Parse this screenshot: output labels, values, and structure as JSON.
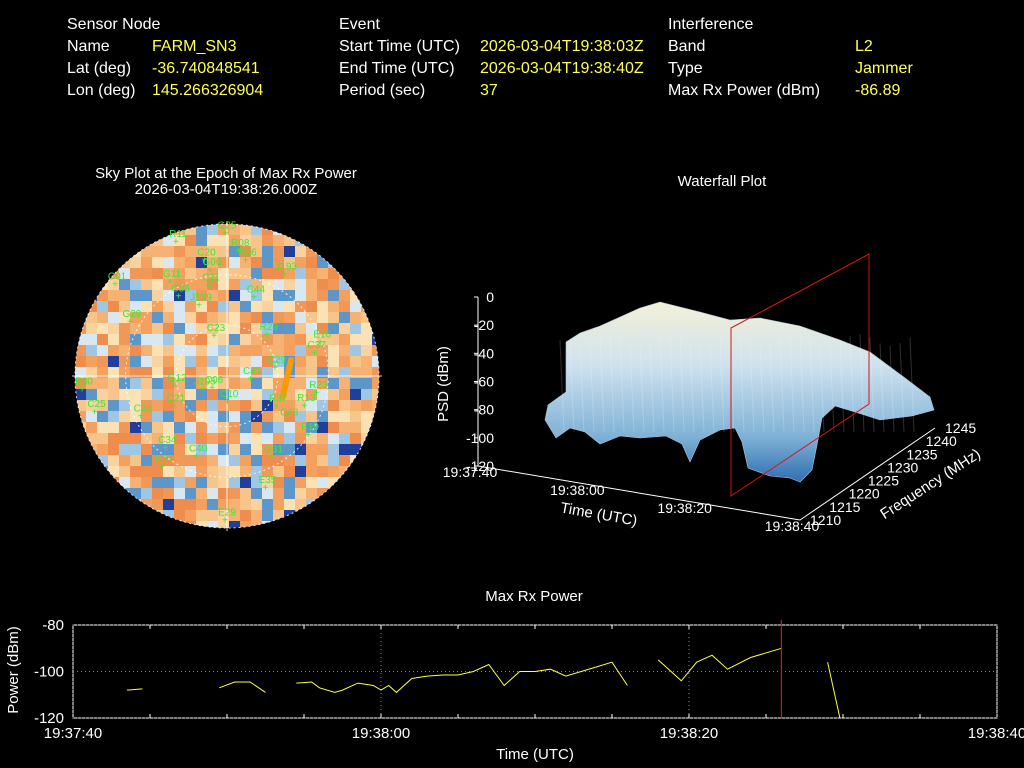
{
  "header": {
    "sensor": {
      "heading": "Sensor Node",
      "name_label": "Name",
      "name_value": "FARM_SN3",
      "lat_label": "Lat (deg)",
      "lat_value": "-36.740848541",
      "lon_label": "Lon (deg)",
      "lon_value": "145.266326904"
    },
    "event": {
      "heading": "Event",
      "start_label": "Start Time (UTC)",
      "start_value": "2026-03-04T19:38:03Z",
      "end_label": "End Time (UTC)",
      "end_value": "2026-03-04T19:38:40Z",
      "period_label": "Period (sec)",
      "period_value": "37"
    },
    "interference": {
      "heading": "Interference",
      "band_label": "Band",
      "band_value": "L2",
      "type_label": "Type",
      "type_value": "Jammer",
      "power_label": "Max Rx Power (dBm)",
      "power_value": "-86.89"
    }
  },
  "colors": {
    "label_value": "#ffff55",
    "sat_label": "#33ee33",
    "marker": "#dd1111",
    "trace": "#ffff44"
  },
  "chart_data": [
    {
      "type": "scatter",
      "title": "Sky Plot at the Epoch of Max Rx Power",
      "subtitle": "2026-03-04T19:38:26.000Z",
      "satellites": [
        {
          "id": "G25",
          "az": 0,
          "el": 5
        },
        {
          "id": "R11",
          "az": 340,
          "el": 5
        },
        {
          "id": "R08",
          "az": 6,
          "el": 15
        },
        {
          "id": "R26",
          "az": 10,
          "el": 20
        },
        {
          "id": "C20",
          "az": 350,
          "el": 20
        },
        {
          "id": "G06",
          "az": 352,
          "el": 26
        },
        {
          "id": "C11",
          "az": 350,
          "el": 35
        },
        {
          "id": "J193",
          "az": 30,
          "el": 20
        },
        {
          "id": "C01",
          "az": 310,
          "el": 5
        },
        {
          "id": "G11",
          "az": 330,
          "el": 25
        },
        {
          "id": "C38",
          "az": 330,
          "el": 35
        },
        {
          "id": "J199",
          "az": 340,
          "el": 45
        },
        {
          "id": "C44",
          "az": 20,
          "el": 40
        },
        {
          "id": "E16",
          "az": 70,
          "el": 30
        },
        {
          "id": "R29",
          "az": 45,
          "el": 55
        },
        {
          "id": "C23",
          "az": 345,
          "el": 65
        },
        {
          "id": "C29",
          "az": 80,
          "el": 60
        },
        {
          "id": "C37",
          "az": 75,
          "el": 35
        },
        {
          "id": "R23",
          "az": 100,
          "el": 35
        },
        {
          "id": "C41",
          "az": 95,
          "el": 75
        },
        {
          "id": "G12",
          "az": 260,
          "el": 60
        },
        {
          "id": "J195",
          "az": 240,
          "el": 75
        },
        {
          "id": "C06",
          "az": 230,
          "el": 80
        },
        {
          "id": "E30",
          "az": 265,
          "el": 5
        },
        {
          "id": "C25",
          "az": 255,
          "el": 10
        },
        {
          "id": "C36",
          "az": 245,
          "el": 35
        },
        {
          "id": "C21",
          "az": 240,
          "el": 55
        },
        {
          "id": "C27",
          "az": 215,
          "el": 25
        },
        {
          "id": "R37",
          "az": 120,
          "el": 55
        },
        {
          "id": "R13",
          "az": 110,
          "el": 40
        },
        {
          "id": "E19",
          "az": 125,
          "el": 30
        },
        {
          "id": "C43",
          "az": 125,
          "el": 45
        },
        {
          "id": "G31",
          "az": 150,
          "el": 35
        },
        {
          "id": "E35",
          "az": 160,
          "el": 20
        },
        {
          "id": "C40",
          "az": 200,
          "el": 40
        },
        {
          "id": "E29",
          "az": 180,
          "el": 5
        },
        {
          "id": "C34",
          "az": 220,
          "el": 35
        },
        {
          "id": "G29",
          "az": 300,
          "el": 25
        },
        {
          "id": "C10",
          "az": 175,
          "el": 75
        }
      ]
    },
    {
      "type": "area",
      "title": "Waterfall Plot",
      "xlabel": "Time (UTC)",
      "ylabel": "Frequency (MHz)",
      "zlabel": "PSD (dBm)",
      "x_ticks": [
        "19:37:40",
        "19:38:00",
        "19:38:20",
        "19:38:40"
      ],
      "y_ticks": [
        1210,
        1215,
        1220,
        1225,
        1230,
        1235,
        1240,
        1245
      ],
      "z_ticks": [
        0,
        -20,
        -40,
        -60,
        -80,
        -100,
        -120
      ],
      "zlim": [
        -120,
        0
      ],
      "marker_time": "19:38:26"
    },
    {
      "type": "line",
      "title": "Max Rx Power",
      "xlabel": "Time (UTC)",
      "ylabel": "Power (dBm)",
      "x_ticks": [
        "19:37:40",
        "19:38:00",
        "19:38:20",
        "19:38:40"
      ],
      "y_ticks": [
        -80,
        -100,
        -120
      ],
      "ylim": [
        -120,
        -80
      ],
      "x_range_sec": [
        0,
        60
      ],
      "marker_sec": 46,
      "grid": true,
      "segments": [
        [
          [
            3.5,
            -108
          ],
          [
            4.5,
            -107.5
          ]
        ],
        [
          [
            9.5,
            -107
          ],
          [
            10.5,
            -104.5
          ],
          [
            11.5,
            -104.5
          ],
          [
            12.5,
            -109
          ]
        ],
        [
          [
            14.5,
            -105
          ],
          [
            15.5,
            -104.5
          ],
          [
            16,
            -107
          ],
          [
            17,
            -109
          ],
          [
            17.5,
            -108
          ],
          [
            18.5,
            -105
          ],
          [
            19.5,
            -106
          ],
          [
            20,
            -108
          ],
          [
            20.5,
            -106
          ],
          [
            21,
            -109
          ],
          [
            22,
            -103
          ],
          [
            23,
            -102
          ],
          [
            24,
            -101.5
          ],
          [
            25,
            -101.5
          ],
          [
            26,
            -100
          ],
          [
            27,
            -97
          ],
          [
            28,
            -106
          ],
          [
            29,
            -100
          ],
          [
            30,
            -100
          ],
          [
            31,
            -99
          ],
          [
            32,
            -102
          ],
          [
            33,
            -100
          ],
          [
            34,
            -98
          ],
          [
            35,
            -96
          ],
          [
            36,
            -106
          ]
        ]
      ],
      "segments2": [
        [
          [
            38,
            -95
          ],
          [
            39.5,
            -104
          ],
          [
            40.5,
            -96
          ],
          [
            41.5,
            -93
          ],
          [
            42.5,
            -99
          ],
          [
            44,
            -94
          ],
          [
            46,
            -90
          ]
        ],
        [
          [
            49,
            -96
          ],
          [
            49.8,
            -120
          ]
        ]
      ]
    }
  ]
}
